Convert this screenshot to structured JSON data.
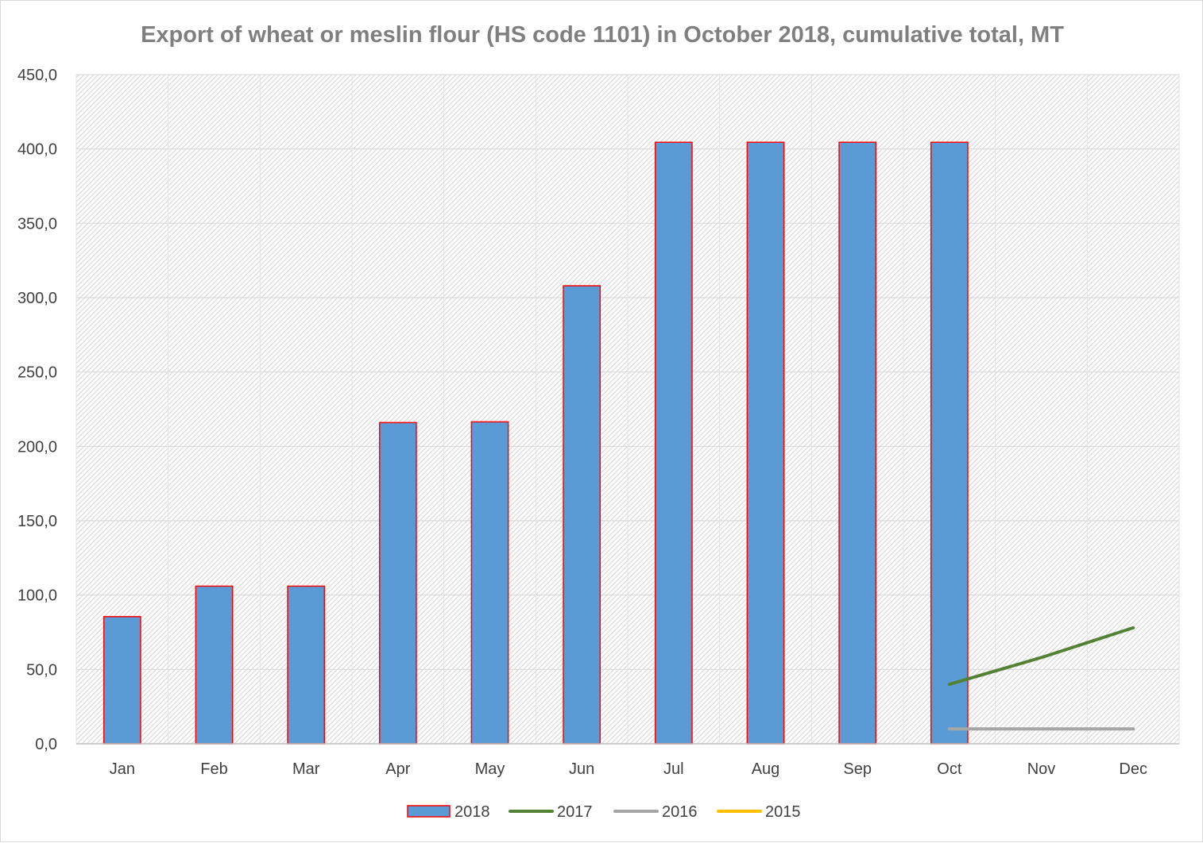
{
  "chart_data": {
    "type": "bar",
    "title": "Export of wheat or meslin flour (HS code 1101) in October 2018, cumulative total, MT",
    "xlabel": "",
    "ylabel": "",
    "ylim": [
      0,
      450
    ],
    "ytick_step": 50,
    "ytick_labels": [
      "0,0",
      "50,0",
      "100,0",
      "150,0",
      "200,0",
      "250,0",
      "300,0",
      "350,0",
      "400,0",
      "450,0"
    ],
    "categories": [
      "Jan",
      "Feb",
      "Mar",
      "Apr",
      "May",
      "Jun",
      "Jul",
      "Aug",
      "Sep",
      "Oct",
      "Nov",
      "Dec"
    ],
    "grid": true,
    "legend_position": "bottom",
    "series": [
      {
        "name": "2018",
        "type": "bar",
        "color": "#5b9bd5",
        "edge_color": "#ff0000",
        "values": [
          85.5,
          106,
          106,
          216,
          216.5,
          308,
          404.5,
          404.5,
          404.5,
          404.5,
          null,
          null
        ]
      },
      {
        "name": "2017",
        "type": "line",
        "color": "#548235",
        "values": [
          null,
          null,
          null,
          null,
          null,
          null,
          null,
          null,
          null,
          40,
          58,
          78
        ]
      },
      {
        "name": "2016",
        "type": "line",
        "color": "#a5a5a5",
        "values": [
          null,
          null,
          null,
          null,
          null,
          null,
          null,
          null,
          null,
          10,
          10,
          10
        ]
      },
      {
        "name": "2015",
        "type": "line",
        "color": "#ffc000",
        "values": [
          null,
          null,
          null,
          null,
          null,
          null,
          null,
          null,
          null,
          null,
          null,
          null
        ]
      }
    ]
  }
}
